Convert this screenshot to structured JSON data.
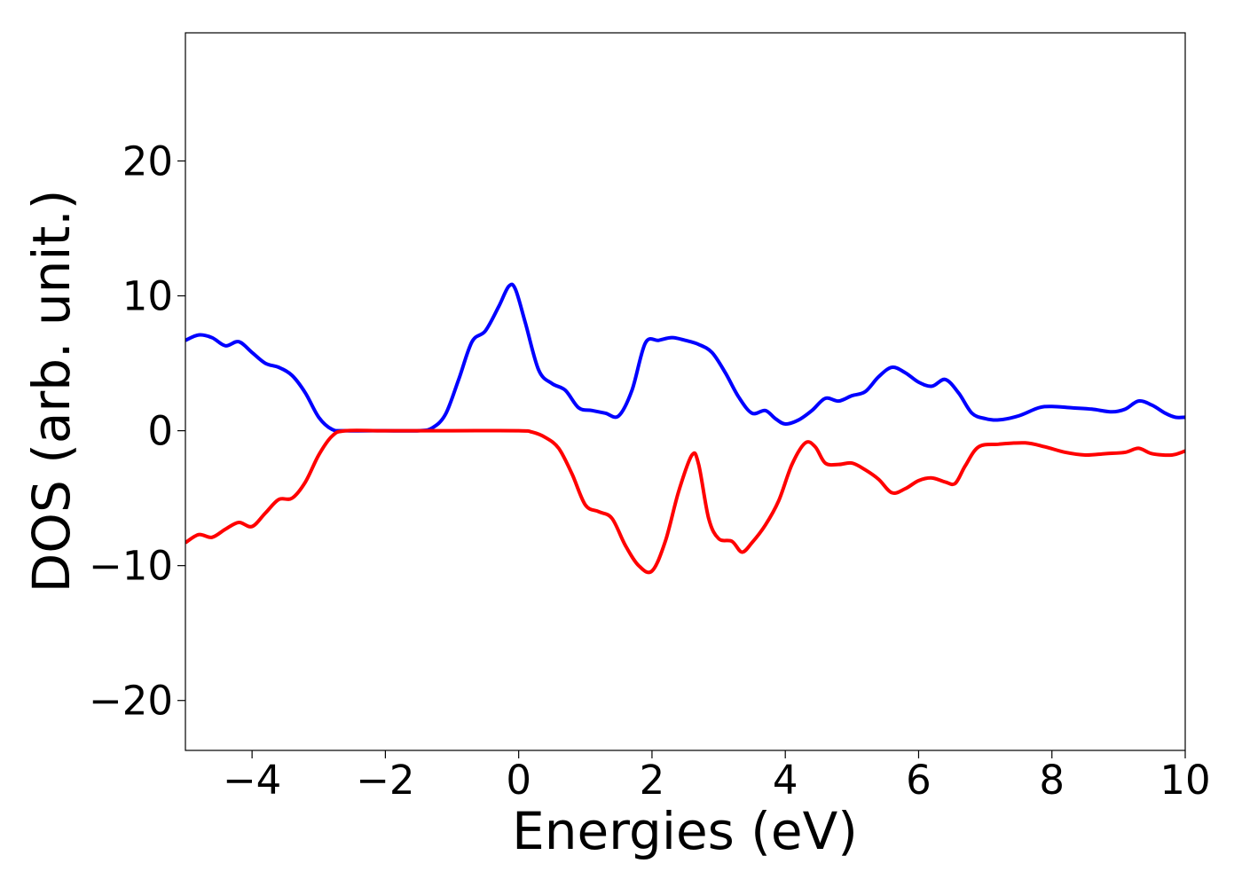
{
  "chart_data": {
    "type": "line",
    "title": "",
    "xlabel": "Energies (eV)",
    "ylabel": "DOS (arb. unit.)",
    "xlim": [
      -5,
      10
    ],
    "ylim": [
      -23.7,
      29.5
    ],
    "grid": false,
    "legend": "none",
    "x_ticks": [
      -4,
      -2,
      0,
      2,
      4,
      6,
      8,
      10
    ],
    "x_tick_labels": [
      "−4",
      "−2",
      "0",
      "2",
      "4",
      "6",
      "8",
      "10"
    ],
    "y_ticks": [
      -20,
      -10,
      0,
      10,
      20
    ],
    "y_tick_labels": [
      "−20",
      "−10",
      "0",
      "10",
      "20"
    ],
    "series": [
      {
        "color": "#0000ff",
        "points": [
          [
            -5.0,
            6.7
          ],
          [
            -4.8,
            7.1
          ],
          [
            -4.6,
            6.9
          ],
          [
            -4.4,
            6.3
          ],
          [
            -4.2,
            6.6
          ],
          [
            -4.0,
            5.8
          ],
          [
            -3.8,
            5.0
          ],
          [
            -3.6,
            4.7
          ],
          [
            -3.4,
            4.1
          ],
          [
            -3.2,
            2.8
          ],
          [
            -3.0,
            1.0
          ],
          [
            -2.8,
            0.1
          ],
          [
            -2.6,
            0.0
          ],
          [
            -2.0,
            0.0
          ],
          [
            -1.5,
            0.0
          ],
          [
            -1.3,
            0.2
          ],
          [
            -1.1,
            1.2
          ],
          [
            -0.9,
            3.8
          ],
          [
            -0.7,
            6.6
          ],
          [
            -0.5,
            7.4
          ],
          [
            -0.3,
            9.2
          ],
          [
            -0.15,
            10.7
          ],
          [
            -0.05,
            10.5
          ],
          [
            0.1,
            8.0
          ],
          [
            0.3,
            4.5
          ],
          [
            0.5,
            3.5
          ],
          [
            0.7,
            3.0
          ],
          [
            0.9,
            1.7
          ],
          [
            1.1,
            1.5
          ],
          [
            1.3,
            1.3
          ],
          [
            1.5,
            1.1
          ],
          [
            1.7,
            3.0
          ],
          [
            1.9,
            6.5
          ],
          [
            2.1,
            6.7
          ],
          [
            2.3,
            6.9
          ],
          [
            2.5,
            6.7
          ],
          [
            2.7,
            6.4
          ],
          [
            2.9,
            5.8
          ],
          [
            3.1,
            4.3
          ],
          [
            3.3,
            2.5
          ],
          [
            3.5,
            1.3
          ],
          [
            3.7,
            1.5
          ],
          [
            3.85,
            0.9
          ],
          [
            4.0,
            0.5
          ],
          [
            4.2,
            0.8
          ],
          [
            4.4,
            1.5
          ],
          [
            4.6,
            2.4
          ],
          [
            4.8,
            2.2
          ],
          [
            5.0,
            2.6
          ],
          [
            5.2,
            2.9
          ],
          [
            5.4,
            4.0
          ],
          [
            5.6,
            4.7
          ],
          [
            5.8,
            4.3
          ],
          [
            6.0,
            3.6
          ],
          [
            6.2,
            3.3
          ],
          [
            6.4,
            3.8
          ],
          [
            6.6,
            2.8
          ],
          [
            6.8,
            1.3
          ],
          [
            7.0,
            0.9
          ],
          [
            7.2,
            0.8
          ],
          [
            7.5,
            1.1
          ],
          [
            7.8,
            1.7
          ],
          [
            8.0,
            1.8
          ],
          [
            8.3,
            1.7
          ],
          [
            8.6,
            1.6
          ],
          [
            8.9,
            1.4
          ],
          [
            9.1,
            1.6
          ],
          [
            9.3,
            2.2
          ],
          [
            9.5,
            1.9
          ],
          [
            9.7,
            1.3
          ],
          [
            9.85,
            1.0
          ],
          [
            10.0,
            1.0
          ]
        ]
      },
      {
        "color": "#ff0000",
        "points": [
          [
            -5.0,
            -8.3
          ],
          [
            -4.8,
            -7.7
          ],
          [
            -4.6,
            -7.9
          ],
          [
            -4.4,
            -7.3
          ],
          [
            -4.2,
            -6.8
          ],
          [
            -4.0,
            -7.1
          ],
          [
            -3.8,
            -6.1
          ],
          [
            -3.6,
            -5.1
          ],
          [
            -3.4,
            -5.0
          ],
          [
            -3.2,
            -3.8
          ],
          [
            -3.0,
            -1.8
          ],
          [
            -2.8,
            -0.4
          ],
          [
            -2.6,
            0.0
          ],
          [
            -2.0,
            0.0
          ],
          [
            -1.0,
            0.0
          ],
          [
            0.0,
            0.0
          ],
          [
            0.2,
            -0.1
          ],
          [
            0.4,
            -0.5
          ],
          [
            0.6,
            -1.3
          ],
          [
            0.8,
            -3.2
          ],
          [
            1.0,
            -5.5
          ],
          [
            1.2,
            -6.0
          ],
          [
            1.4,
            -6.5
          ],
          [
            1.6,
            -8.5
          ],
          [
            1.8,
            -10.0
          ],
          [
            2.0,
            -10.4
          ],
          [
            2.2,
            -8.2
          ],
          [
            2.4,
            -4.5
          ],
          [
            2.6,
            -1.8
          ],
          [
            2.7,
            -2.5
          ],
          [
            2.85,
            -6.5
          ],
          [
            3.0,
            -8.0
          ],
          [
            3.2,
            -8.2
          ],
          [
            3.35,
            -9.0
          ],
          [
            3.5,
            -8.3
          ],
          [
            3.7,
            -7.0
          ],
          [
            3.9,
            -5.2
          ],
          [
            4.1,
            -2.5
          ],
          [
            4.3,
            -0.9
          ],
          [
            4.45,
            -1.2
          ],
          [
            4.6,
            -2.4
          ],
          [
            4.8,
            -2.5
          ],
          [
            5.0,
            -2.4
          ],
          [
            5.2,
            -2.9
          ],
          [
            5.4,
            -3.6
          ],
          [
            5.6,
            -4.6
          ],
          [
            5.8,
            -4.3
          ],
          [
            6.0,
            -3.7
          ],
          [
            6.2,
            -3.5
          ],
          [
            6.4,
            -3.8
          ],
          [
            6.55,
            -3.9
          ],
          [
            6.7,
            -2.6
          ],
          [
            6.9,
            -1.2
          ],
          [
            7.2,
            -1.0
          ],
          [
            7.6,
            -0.9
          ],
          [
            7.9,
            -1.2
          ],
          [
            8.2,
            -1.6
          ],
          [
            8.5,
            -1.8
          ],
          [
            8.8,
            -1.7
          ],
          [
            9.1,
            -1.6
          ],
          [
            9.3,
            -1.3
          ],
          [
            9.5,
            -1.7
          ],
          [
            9.8,
            -1.8
          ],
          [
            10.0,
            -1.5
          ]
        ]
      }
    ]
  }
}
